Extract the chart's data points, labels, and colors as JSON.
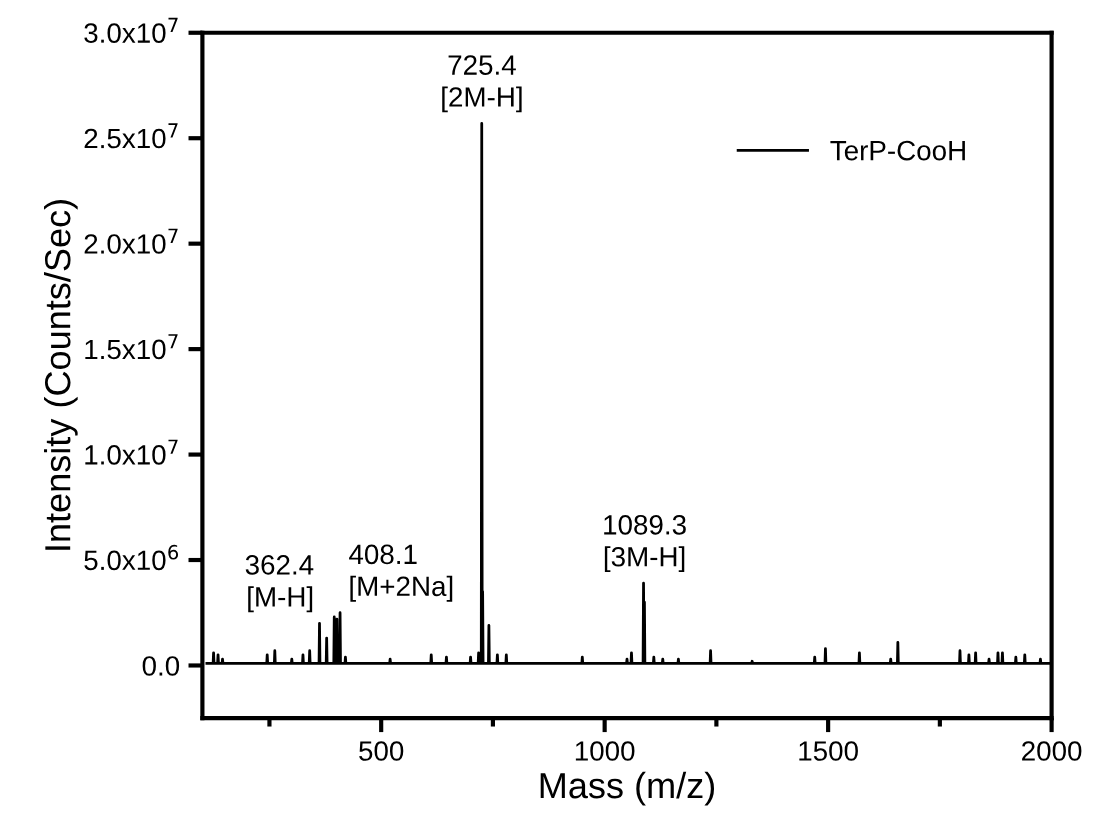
{
  "chart_data": {
    "type": "line",
    "xlabel": "Mass (m/z)",
    "ylabel": "Intensity (Counts/Sec)",
    "xlim": [
      100,
      2000
    ],
    "ylim": [
      -2500000.0,
      30000000.0
    ],
    "xticks": [
      {
        "value": 250,
        "label": null
      },
      500,
      {
        "value": 750,
        "label": null
      },
      1000,
      {
        "value": 1250,
        "label": null
      },
      1500,
      {
        "value": 1750,
        "label": null
      },
      2000
    ],
    "yticks": [
      {
        "value": 0,
        "label": "0.0"
      },
      {
        "value": 5000000.0,
        "label": "5.0x10$^{6}$"
      },
      {
        "value": 10000000.0,
        "label": "1.0x10$^{7}$"
      },
      {
        "value": 15000000.0,
        "label": "1.5x10$^{7}$"
      },
      {
        "value": 20000000.0,
        "label": "2.0x10$^{7}$"
      },
      {
        "value": 25000000.0,
        "label": "2.5x10$^{7}$"
      },
      {
        "value": 30000000.0,
        "label": "3.0x10$^{7}$"
      }
    ],
    "legend": "top right",
    "grid": false,
    "series": [
      {
        "name": "TerP-CooH",
        "color": "#000000",
        "x": [
          110,
          124,
          125,
          126,
          134,
          135,
          136,
          144,
          145,
          146,
          244,
          245,
          246,
          261,
          262,
          263,
          299,
          300,
          301,
          324,
          325,
          326,
          339,
          340,
          341,
          361,
          362,
          363,
          377,
          378,
          379,
          394,
          395,
          396,
          400,
          401,
          402,
          407,
          408,
          409,
          419,
          420,
          421,
          519,
          520,
          521,
          611,
          612,
          613,
          645,
          646,
          647,
          699,
          700,
          701,
          717,
          718,
          719,
          724,
          725,
          726,
          727,
          728,
          740,
          741,
          742,
          759,
          760,
          761,
          779,
          780,
          781,
          949,
          950,
          951,
          1049,
          1050,
          1051,
          1059,
          1060,
          1061,
          1086,
          1087,
          1088,
          1089,
          1090,
          1109,
          1110,
          1111,
          1129,
          1130,
          1131,
          1164,
          1165,
          1166,
          1236,
          1237,
          1238,
          1329,
          1330,
          1331,
          1469,
          1470,
          1471,
          1493,
          1494,
          1495,
          1569,
          1570,
          1571,
          1639,
          1640,
          1641,
          1655,
          1656,
          1657,
          1794,
          1795,
          1796,
          1814,
          1815,
          1816,
          1829,
          1830,
          1831,
          1859,
          1860,
          1861,
          1879,
          1880,
          1881,
          1889,
          1890,
          1891,
          1919,
          1920,
          1921,
          1939,
          1940,
          1941,
          1974,
          1975,
          1976,
          2000
        ],
        "values": [
          100000.0,
          100000.0,
          600000.0,
          100000.0,
          100000.0,
          500000.0,
          100000.0,
          100000.0,
          300000.0,
          100000.0,
          100000.0,
          500000.0,
          100000.0,
          100000.0,
          700000.0,
          100000.0,
          100000.0,
          300000.0,
          100000.0,
          100000.0,
          500000.0,
          100000.0,
          100000.0,
          700000.0,
          100000.0,
          100000.0,
          2000000.0,
          100000.0,
          100000.0,
          1300000.0,
          100000.0,
          100000.0,
          2300000.0,
          100000.0,
          100000.0,
          2200000.0,
          100000.0,
          100000.0,
          2500000.0,
          100000.0,
          100000.0,
          400000.0,
          100000.0,
          100000.0,
          300000.0,
          100000.0,
          100000.0,
          500000.0,
          100000.0,
          100000.0,
          400000.0,
          100000.0,
          100000.0,
          400000.0,
          100000.0,
          100000.0,
          600000.0,
          100000.0,
          100000.0,
          25700000.0,
          100000.0,
          3500000.0,
          100000.0,
          100000.0,
          1900000.0,
          100000.0,
          100000.0,
          500000.0,
          100000.0,
          100000.0,
          500000.0,
          100000.0,
          100000.0,
          400000.0,
          100000.0,
          100000.0,
          300000.0,
          100000.0,
          100000.0,
          600000.0,
          100000.0,
          100000.0,
          3900000.0,
          100000.0,
          3000000.0,
          100000.0,
          100000.0,
          400000.0,
          100000.0,
          100000.0,
          300000.0,
          100000.0,
          100000.0,
          300000.0,
          100000.0,
          100000.0,
          700000.0,
          100000.0,
          100000.0,
          200000.0,
          100000.0,
          100000.0,
          400000.0,
          100000.0,
          100000.0,
          800000.0,
          100000.0,
          100000.0,
          600000.0,
          100000.0,
          100000.0,
          300000.0,
          100000.0,
          100000.0,
          1100000.0,
          100000.0,
          100000.0,
          700000.0,
          100000.0,
          100000.0,
          500000.0,
          100000.0,
          100000.0,
          600000.0,
          100000.0,
          100000.0,
          300000.0,
          100000.0,
          100000.0,
          600000.0,
          100000.0,
          100000.0,
          600000.0,
          100000.0,
          100000.0,
          400000.0,
          100000.0,
          100000.0,
          500000.0,
          100000.0,
          100000.0,
          300000.0,
          100000.0,
          100000.0
        ]
      }
    ],
    "annotations": [
      {
        "text": "362.4\n[M-H]",
        "x": 362.4,
        "y": 2000000.0
      },
      {
        "text": "408.1\n[M+2Na]",
        "x": 408.1,
        "y": 2500000.0
      },
      {
        "text": "725.4\n[2M-H]",
        "x": 725.4,
        "y": 25700000.0
      },
      {
        "text": "1089.3\n[3M-H]",
        "x": 1089.3,
        "y": 3900000.0
      }
    ]
  }
}
